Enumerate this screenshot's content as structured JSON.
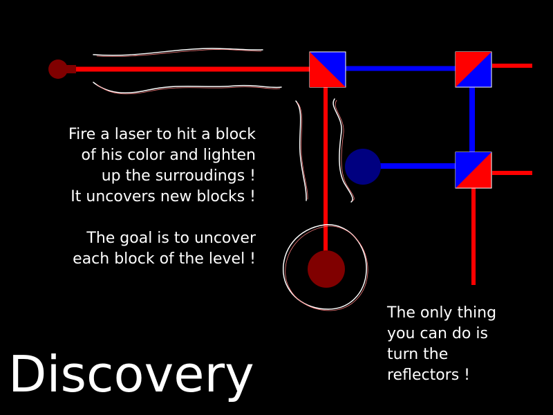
{
  "title": "Discovery",
  "intro_text": "Fire a laser to hit a block\nof his color and lighten\nup the surroudings !\nIt uncovers new blocks !\n\nThe goal is to uncover\neach block of the level !",
  "hint_text": "The only thing\nyou can do is\nturn the\nreflectors !",
  "colors": {
    "background": "#000000",
    "red_laser": "#ff0000",
    "blue_laser": "#0000ff",
    "dark_red_source": "#800000",
    "dark_blue_target": "#000080",
    "outline": "#ffffff"
  },
  "pieces": {
    "laser_source": "red-laser-emitter",
    "reflectors": [
      "red-blue-reflector",
      "red-blue-reflector",
      "red-blue-reflector"
    ],
    "targets": [
      "dark-red-block",
      "dark-blue-block"
    ],
    "sketch_marks": "hand-drawn-motion-lines"
  }
}
